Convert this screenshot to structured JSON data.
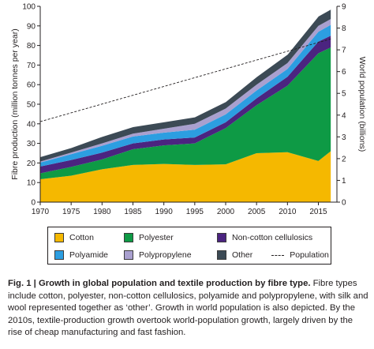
{
  "chart_data": {
    "type": "area",
    "stacked": true,
    "x": [
      1970,
      1975,
      1980,
      1985,
      1990,
      1995,
      2000,
      2005,
      2010,
      2015,
      2017
    ],
    "series": [
      {
        "name": "Cotton",
        "color": "#f5b800",
        "values": [
          11.7,
          13.5,
          16.8,
          19.0,
          19.5,
          19.0,
          19.3,
          25.0,
          25.5,
          21.0,
          26.0
        ]
      },
      {
        "name": "Polyester",
        "color": "#0e9a45",
        "values": [
          3.0,
          4.5,
          5.0,
          8.0,
          9.5,
          11.0,
          18.5,
          24.5,
          34.0,
          55.0,
          53.0
        ]
      },
      {
        "name": "Non-cotton cellulosics",
        "color": "#4b2480",
        "values": [
          3.5,
          3.5,
          3.5,
          3.0,
          3.0,
          3.0,
          3.0,
          3.5,
          4.5,
          6.0,
          6.0
        ]
      },
      {
        "name": "Polyamide",
        "color": "#2c9ee1",
        "values": [
          2.0,
          3.0,
          3.5,
          3.5,
          3.5,
          4.0,
          4.0,
          4.0,
          4.0,
          5.0,
          5.5
        ]
      },
      {
        "name": "Polypropylene",
        "color": "#a9a0cf",
        "values": [
          0.5,
          0.8,
          1.2,
          1.5,
          2.0,
          3.0,
          3.0,
          3.0,
          3.0,
          3.0,
          3.0
        ]
      },
      {
        "name": "Other",
        "color": "#3c4a55",
        "values": [
          2.5,
          2.5,
          3.5,
          3.5,
          3.5,
          3.5,
          3.5,
          4.0,
          4.5,
          5.0,
          5.0
        ]
      }
    ],
    "population": {
      "name": "Population",
      "axis": "right",
      "x": [
        1970,
        2017
      ],
      "values": [
        3.7,
        7.5
      ]
    },
    "xlabel": "",
    "ylabel": "Fibre production (million tonnes per year)",
    "y2label": "World population (billions)",
    "xlim": [
      1970,
      2018
    ],
    "ylim": [
      0,
      100
    ],
    "y2lim": [
      0,
      9
    ],
    "xticks": [
      "1970",
      "1975",
      "1980",
      "1985",
      "1990",
      "1995",
      "2000",
      "2005",
      "2010",
      "2015"
    ],
    "yticks": [
      "0",
      "10",
      "20",
      "30",
      "40",
      "50",
      "60",
      "70",
      "80",
      "90",
      "100"
    ],
    "y2ticks": [
      "0",
      "1",
      "2",
      "3",
      "4",
      "5",
      "6",
      "7",
      "8",
      "9"
    ],
    "grid": false,
    "legend_position": "below"
  },
  "legend": {
    "items": [
      {
        "label": "Cotton",
        "color": "#f5b800",
        "kind": "swatch"
      },
      {
        "label": "Polyester",
        "color": "#0e9a45",
        "kind": "swatch"
      },
      {
        "label": "Non-cotton cellulosics",
        "color": "#4b2480",
        "kind": "swatch"
      },
      {
        "label": "Polyamide",
        "color": "#2c9ee1",
        "kind": "swatch"
      },
      {
        "label": "Polypropylene",
        "color": "#a9a0cf",
        "kind": "swatch"
      },
      {
        "label": "Other",
        "color": "#3c4a55",
        "kind": "swatch"
      },
      {
        "label": "Population",
        "color": "#231f20",
        "kind": "dashed-line"
      }
    ]
  },
  "caption": {
    "lead": "Fig. 1 | Growth in global population and textile production by fibre type.",
    "body": " Fibre types include cotton, polyester, non-cotton cellulosics, polyamide and polypropylene, with silk and wool represented together as ‘other’. Growth in world population is also depicted. By the 2010s, textile-production growth overtook world-population growth, largely driven by the rise of cheap manufacturing and fast fashion."
  }
}
